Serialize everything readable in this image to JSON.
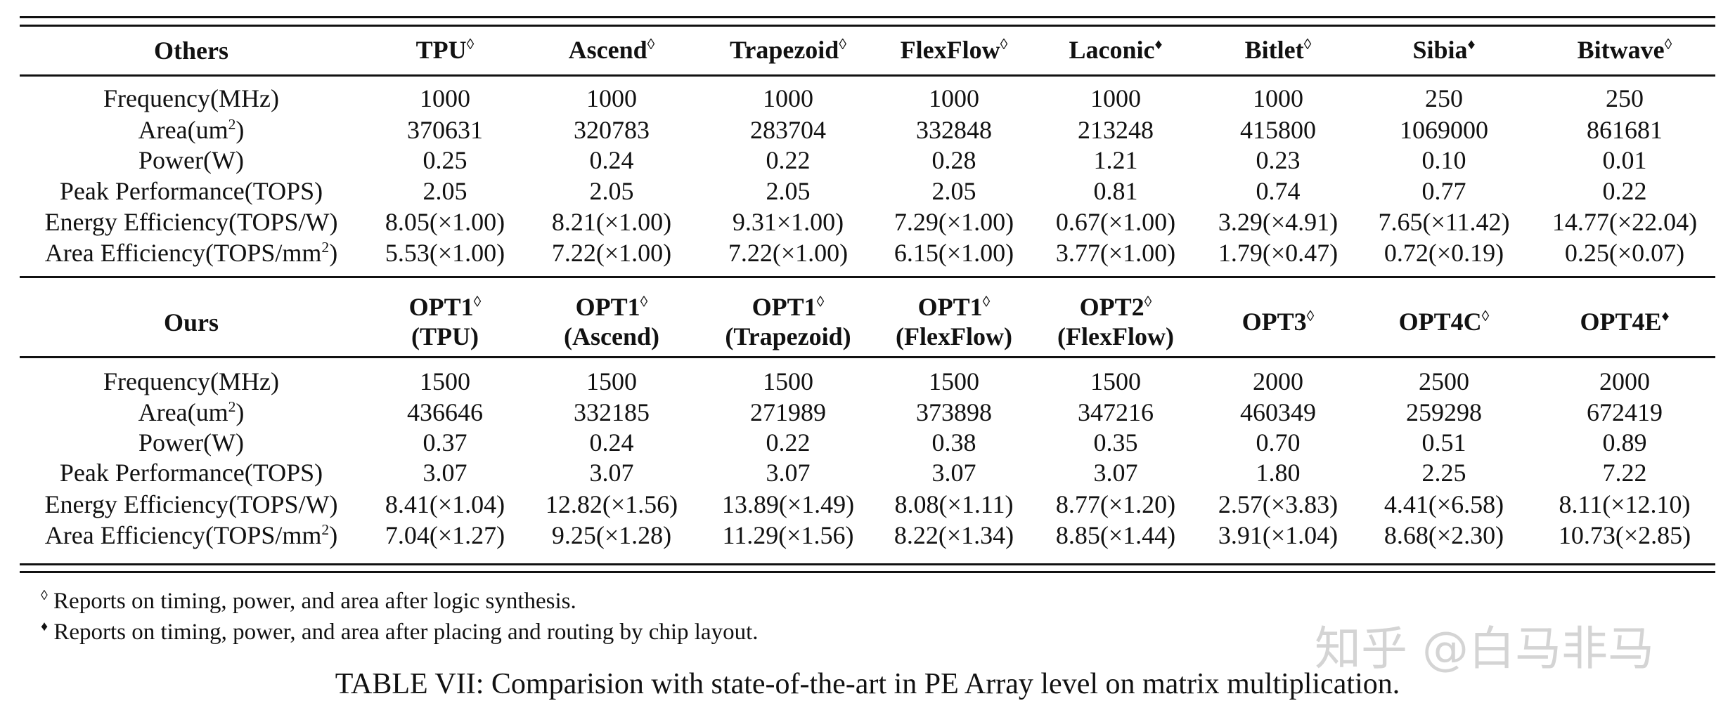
{
  "sections": [
    {
      "header_label": "Others",
      "columns": [
        {
          "name": "TPU",
          "sub": "",
          "mark": "◊"
        },
        {
          "name": "Ascend",
          "sub": "",
          "mark": "◊"
        },
        {
          "name": "Trapezoid",
          "sub": "",
          "mark": "◊"
        },
        {
          "name": "FlexFlow",
          "sub": "",
          "mark": "◊"
        },
        {
          "name": "Laconic",
          "sub": "",
          "mark": "♦"
        },
        {
          "name": "Bitlet",
          "sub": "",
          "mark": "◊"
        },
        {
          "name": "Sibia",
          "sub": "",
          "mark": "♦"
        },
        {
          "name": "Bitwave",
          "sub": "",
          "mark": "◊"
        }
      ],
      "rows": [
        {
          "label": "Frequency(MHz)",
          "sup": "",
          "suffix": "",
          "values": [
            "1000",
            "1000",
            "1000",
            "1000",
            "1000",
            "1000",
            "250",
            "250"
          ]
        },
        {
          "label": "Area(um",
          "sup": "2",
          "suffix": ")",
          "values": [
            "370631",
            "320783",
            "283704",
            "332848",
            "213248",
            "415800",
            "1069000",
            "861681"
          ]
        },
        {
          "label": "Power(W)",
          "sup": "",
          "suffix": "",
          "values": [
            "0.25",
            "0.24",
            "0.22",
            "0.28",
            "1.21",
            "0.23",
            "0.10",
            "0.01"
          ]
        },
        {
          "label": "Peak Performance(TOPS)",
          "sup": "",
          "suffix": "",
          "values": [
            "2.05",
            "2.05",
            "2.05",
            "2.05",
            "0.81",
            "0.74",
            "0.77",
            "0.22"
          ]
        },
        {
          "label": "Energy Efficiency(TOPS/W)",
          "sup": "",
          "suffix": "",
          "values": [
            "8.05(×1.00)",
            "8.21(×1.00)",
            "9.31×1.00)",
            "7.29(×1.00)",
            "0.67(×1.00)",
            "3.29(×4.91)",
            "7.65(×11.42)",
            "14.77(×22.04)"
          ]
        },
        {
          "label": "Area Efficiency(TOPS/mm",
          "sup": "2",
          "suffix": ")",
          "values": [
            "5.53(×1.00)",
            "7.22(×1.00)",
            "7.22(×1.00)",
            "6.15(×1.00)",
            "3.77(×1.00)",
            "1.79(×0.47)",
            "0.72(×0.19)",
            "0.25(×0.07)"
          ]
        }
      ]
    },
    {
      "header_label": "Ours",
      "columns": [
        {
          "name": "OPT1",
          "sub": "(TPU)",
          "mark": "◊"
        },
        {
          "name": "OPT1",
          "sub": "(Ascend)",
          "mark": "◊"
        },
        {
          "name": "OPT1",
          "sub": "(Trapezoid)",
          "mark": "◊"
        },
        {
          "name": "OPT1",
          "sub": "(FlexFlow)",
          "mark": "◊"
        },
        {
          "name": "OPT2",
          "sub": "(FlexFlow)",
          "mark": "◊"
        },
        {
          "name": "OPT3",
          "sub": "",
          "mark": "◊"
        },
        {
          "name": "OPT4C",
          "sub": "",
          "mark": "◊"
        },
        {
          "name": "OPT4E",
          "sub": "",
          "mark": "♦"
        }
      ],
      "rows": [
        {
          "label": "Frequency(MHz)",
          "sup": "",
          "suffix": "",
          "values": [
            "1500",
            "1500",
            "1500",
            "1500",
            "1500",
            "2000",
            "2500",
            "2000"
          ]
        },
        {
          "label": "Area(um",
          "sup": "2",
          "suffix": ")",
          "values": [
            "436646",
            "332185",
            "271989",
            "373898",
            "347216",
            "460349",
            "259298",
            "672419"
          ]
        },
        {
          "label": "Power(W)",
          "sup": "",
          "suffix": "",
          "values": [
            "0.37",
            "0.24",
            "0.22",
            "0.38",
            "0.35",
            "0.70",
            "0.51",
            "0.89"
          ]
        },
        {
          "label": "Peak Performance(TOPS)",
          "sup": "",
          "suffix": "",
          "values": [
            "3.07",
            "3.07",
            "3.07",
            "3.07",
            "3.07",
            "1.80",
            "2.25",
            "7.22"
          ]
        },
        {
          "label": "Energy Efficiency(TOPS/W)",
          "sup": "",
          "suffix": "",
          "values": [
            "8.41(×1.04)",
            "12.82(×1.56)",
            "13.89(×1.49)",
            "8.08(×1.11)",
            "8.77(×1.20)",
            "2.57(×3.83)",
            "4.41(×6.58)",
            "8.11(×12.10)"
          ]
        },
        {
          "label": "Area Efficiency(TOPS/mm",
          "sup": "2",
          "suffix": ")",
          "values": [
            "7.04(×1.27)",
            "9.25(×1.28)",
            "11.29(×1.56)",
            "8.22(×1.34)",
            "8.85(×1.44)",
            "3.91(×1.04)",
            "8.68(×2.30)",
            "10.73(×2.85)"
          ]
        }
      ]
    }
  ],
  "footnotes": [
    {
      "mark": "◊",
      "text": " Reports on timing, power, and area after logic synthesis."
    },
    {
      "mark": "♦",
      "text": " Reports on timing, power, and area after placing and routing by chip layout."
    }
  ],
  "caption": "TABLE VII: Comparision with state-of-the-art in PE Array level on matrix multiplication.",
  "watermark": "知乎 @白马非马"
}
